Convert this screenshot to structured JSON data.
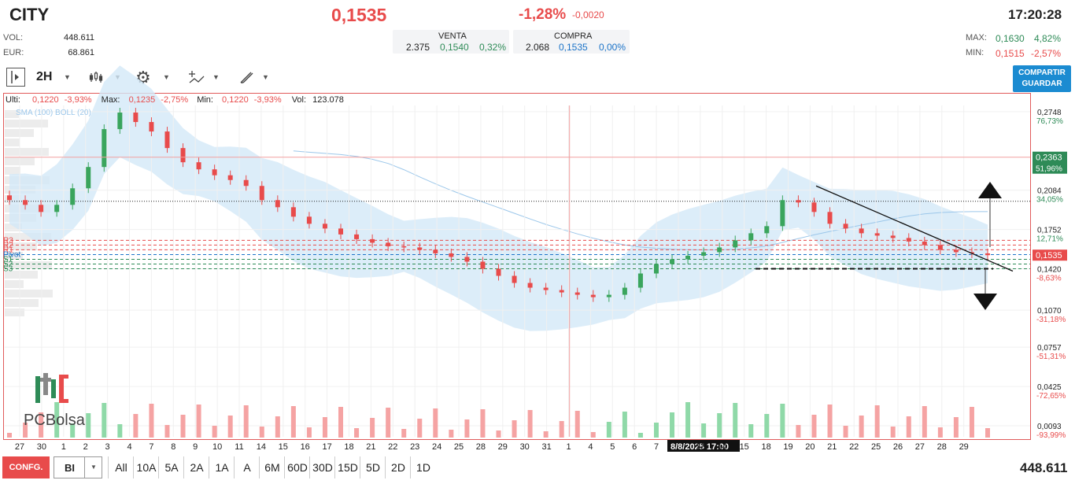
{
  "header": {
    "symbol": "CITY",
    "price": "0,1535",
    "change_pct": "-1,28%",
    "change_abs": "-0,0020",
    "time": "17:20:28",
    "vol_label": "VOL:",
    "vol_value": "448.611",
    "eur_label": "EUR:",
    "eur_value": "68.861",
    "venta": {
      "label": "VENTA",
      "qty": "2.375",
      "price": "0,1540",
      "pct": "0,32%"
    },
    "compra": {
      "label": "COMPRA",
      "qty": "2.068",
      "price": "0,1535",
      "pct": "0,00%"
    },
    "max": {
      "label": "MAX:",
      "price": "0,1630",
      "pct": "4,82%"
    },
    "min": {
      "label": "MIN:",
      "price": "0,1515",
      "pct": "-2,57%"
    }
  },
  "toolbar": {
    "interval": "2H",
    "share_line1": "COMPARTIR",
    "share_line2": "GUARDAR",
    "icons": [
      "panel-toggle-icon",
      "candles-icon",
      "gear-icon",
      "indicators-icon",
      "draw-icon"
    ]
  },
  "infobar": {
    "ulti_label": "Ulti:",
    "ulti_value": "0,1220",
    "ulti_pct": "-3,93%",
    "max_label": "Max:",
    "max_value": "0,1235",
    "max_pct": "-2,75%",
    "min_label": "Min:",
    "min_value": "0,1220",
    "min_pct": "-3,93%",
    "vol_label": "Vol:",
    "vol_value": "123.078",
    "overlay_label": "SMA (100)  BOLL (20)"
  },
  "chart_data": {
    "type": "candlestick",
    "x_labels": [
      "27",
      "30",
      "1",
      "2",
      "3",
      "4",
      "7",
      "8",
      "9",
      "10",
      "11",
      "14",
      "15",
      "16",
      "17",
      "18",
      "21",
      "22",
      "23",
      "24",
      "25",
      "28",
      "29",
      "30",
      "31",
      "1",
      "4",
      "5",
      "6",
      "7",
      "8/8/2025 17:00",
      "13",
      "14",
      "15",
      "18",
      "19",
      "20",
      "21",
      "22",
      "25",
      "26",
      "27",
      "28",
      "29"
    ],
    "crosshair_label": "8/8/2025 17:00",
    "y_axis": {
      "ticks": [
        {
          "value": "0,2748",
          "pct": "76,73%"
        },
        {
          "value": "0,2084",
          "pct": "34,05%"
        },
        {
          "value": "0,1752",
          "pct": "12,71%"
        },
        {
          "value": "0,1420",
          "pct": "-8,63%"
        },
        {
          "value": "0,1070",
          "pct": "-31,18%"
        },
        {
          "value": "0,0757",
          "pct": "-51,31%"
        },
        {
          "value": "0,0425",
          "pct": "-72,65%"
        },
        {
          "value": "0,0093",
          "pct": "-93,99%"
        }
      ],
      "ylim": [
        0.0,
        0.28
      ]
    },
    "markers": [
      {
        "value": "0,2363",
        "pct": "51,96%",
        "color": "#2e8b57"
      },
      {
        "value": "0,1535",
        "color": "#e84b4b"
      }
    ],
    "pivot_labels": [
      "R3",
      "R2",
      "R1",
      "Pivot",
      "S1",
      "S2",
      "S3"
    ],
    "pivot_levels": [
      0.166,
      0.162,
      0.158,
      0.154,
      0.15,
      0.146,
      0.142
    ],
    "resistance_level": 0.199,
    "support_level": 0.142,
    "trend_line": [
      [
        0.212,
        0.14
      ]
    ],
    "closes": [
      0.2,
      0.196,
      0.19,
      0.196,
      0.21,
      0.228,
      0.26,
      0.274,
      0.266,
      0.258,
      0.244,
      0.232,
      0.226,
      0.221,
      0.217,
      0.212,
      0.2,
      0.194,
      0.186,
      0.18,
      0.176,
      0.171,
      0.167,
      0.164,
      0.161,
      0.16,
      0.158,
      0.155,
      0.152,
      0.148,
      0.142,
      0.136,
      0.13,
      0.126,
      0.124,
      0.122,
      0.12,
      0.118,
      0.12,
      0.126,
      0.138,
      0.146,
      0.15,
      0.153,
      0.156,
      0.16,
      0.166,
      0.172,
      0.178,
      0.2,
      0.198,
      0.19,
      0.18,
      0.176,
      0.172,
      0.17,
      0.168,
      0.165,
      0.162,
      0.158,
      0.156,
      0.155,
      0.1535
    ]
  },
  "logo": {
    "brand": "PCBolsa"
  },
  "bottom": {
    "conf": "CONFG.",
    "mode": "BI",
    "periods": [
      "All",
      "10A",
      "5A",
      "2A",
      "1A",
      "A",
      "6M",
      "60D",
      "30D",
      "15D",
      "5D",
      "2D",
      "1D"
    ],
    "total": "448.611"
  }
}
